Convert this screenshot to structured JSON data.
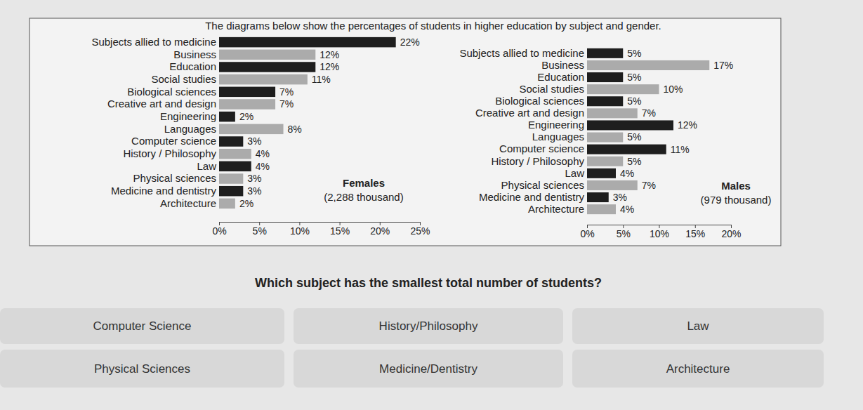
{
  "header": {
    "title": "The diagrams below show the percentages of students in higher education by subject and gender."
  },
  "chart_data": [
    {
      "type": "bar",
      "orientation": "horizontal",
      "categories": [
        "Subjects allied to medicine",
        "Business",
        "Education",
        "Social studies",
        "Biological sciences",
        "Creative art and design",
        "Engineering",
        "Languages",
        "Computer science",
        "History / Philosophy",
        "Law",
        "Physical sciences",
        "Medicine and dentistry",
        "Architecture"
      ],
      "values": [
        22,
        12,
        12,
        11,
        7,
        7,
        2,
        8,
        3,
        4,
        4,
        3,
        3,
        2
      ],
      "value_labels": [
        "22%",
        "12%",
        "12%",
        "11%",
        "7%",
        "7%",
        "2%",
        "8%",
        "3%",
        "4%",
        "4%",
        "3%",
        "3%",
        "2%"
      ],
      "colors": [
        "#1e1e1e",
        "#ababab",
        "#1e1e1e",
        "#ababab",
        "#1e1e1e",
        "#ababab",
        "#1e1e1e",
        "#ababab",
        "#1e1e1e",
        "#ababab",
        "#1e1e1e",
        "#ababab",
        "#1e1e1e",
        "#ababab"
      ],
      "data_labels": true,
      "annotations": [
        "Females",
        "(2,288 thousand)"
      ],
      "xlim": [
        0,
        25
      ],
      "xticks": [
        {
          "value": 0,
          "label": "0%"
        },
        {
          "value": 5,
          "label": "5%"
        },
        {
          "value": 10,
          "label": "10%"
        },
        {
          "value": 15,
          "label": "15%"
        },
        {
          "value": 20,
          "label": "20%"
        },
        {
          "value": 25,
          "label": "25%"
        }
      ],
      "grid": false
    },
    {
      "type": "bar",
      "orientation": "horizontal",
      "categories": [
        "Subjects allied to medicine",
        "Business",
        "Education",
        "Social studies",
        "Biological sciences",
        "Creative art and design",
        "Engineering",
        "Languages",
        "Computer science",
        "History / Philosophy",
        "Law",
        "Physical sciences",
        "Medicine and dentistry",
        "Architecture"
      ],
      "values": [
        5,
        17,
        5,
        10,
        5,
        7,
        12,
        5,
        11,
        5,
        4,
        7,
        3,
        4
      ],
      "value_labels": [
        "5%",
        "17%",
        "5%",
        "10%",
        "5%",
        "7%",
        "12%",
        "5%",
        "11%",
        "5%",
        "4%",
        "7%",
        "3%",
        "4%"
      ],
      "colors": [
        "#1e1e1e",
        "#ababab",
        "#1e1e1e",
        "#ababab",
        "#1e1e1e",
        "#ababab",
        "#1e1e1e",
        "#ababab",
        "#1e1e1e",
        "#ababab",
        "#1e1e1e",
        "#ababab",
        "#1e1e1e",
        "#ababab"
      ],
      "data_labels": true,
      "annotations": [
        "Males",
        "(979 thousand)"
      ],
      "xlim": [
        0,
        20
      ],
      "xticks": [
        {
          "value": 0,
          "label": "0%"
        },
        {
          "value": 5,
          "label": "5%"
        },
        {
          "value": 10,
          "label": "10%"
        },
        {
          "value": 15,
          "label": "15%"
        },
        {
          "value": 20,
          "label": "20%"
        }
      ],
      "grid": false
    }
  ],
  "question": "Which subject has the smallest total number of students?",
  "options": [
    "Computer Science",
    "History/Philosophy",
    "Law",
    "Physical Sciences",
    "Medicine/Dentistry",
    "Architecture"
  ]
}
